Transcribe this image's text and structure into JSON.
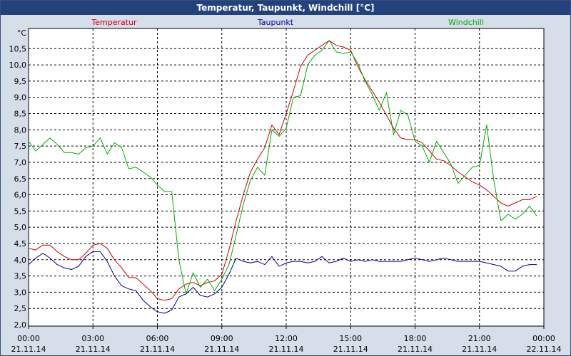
{
  "window": {
    "title": "Temperatur, Taupunkt, Windchill [°C]"
  },
  "chart_data": {
    "type": "line",
    "title": "Temperatur, Taupunkt, Windchill [°C]",
    "ylabel": "°C",
    "ylim": [
      2.0,
      11.0
    ],
    "yticks": [
      "2,0",
      "2,5",
      "3,0",
      "3,5",
      "4,0",
      "4,5",
      "5,0",
      "5,5",
      "6,0",
      "6,5",
      "7,0",
      "7,5",
      "8,0",
      "8,5",
      "9,0",
      "9,5",
      "10,0",
      "10,5"
    ],
    "x_ticks": [
      {
        "time": "00:00",
        "date": "21.11.14"
      },
      {
        "time": "03:00",
        "date": "21.11.14"
      },
      {
        "time": "06:00",
        "date": "21.11.14"
      },
      {
        "time": "09:00",
        "date": "21.11.14"
      },
      {
        "time": "12:00",
        "date": "21.11.14"
      },
      {
        "time": "15:00",
        "date": "21.11.14"
      },
      {
        "time": "18:00",
        "date": "21.11.14"
      },
      {
        "time": "21:00",
        "date": "21.11.14"
      },
      {
        "time": "00:00",
        "date": "22.11.14"
      }
    ],
    "xlim": [
      "21.11.14 00:00",
      "22.11.14 00:00"
    ],
    "grid": true,
    "legend": "top",
    "series": [
      {
        "name": "Temperatur",
        "color": "#cc0000",
        "points": [
          [
            "00:00",
            4.35
          ],
          [
            "00:20",
            4.3
          ],
          [
            "00:40",
            4.45
          ],
          [
            "01:00",
            4.45
          ],
          [
            "01:20",
            4.25
          ],
          [
            "01:40",
            4.1
          ],
          [
            "02:00",
            4.0
          ],
          [
            "02:20",
            4.0
          ],
          [
            "02:40",
            4.2
          ],
          [
            "03:00",
            4.45
          ],
          [
            "03:20",
            4.5
          ],
          [
            "03:40",
            4.35
          ],
          [
            "04:00",
            4.0
          ],
          [
            "04:20",
            3.75
          ],
          [
            "04:40",
            3.45
          ],
          [
            "05:00",
            3.45
          ],
          [
            "05:20",
            3.25
          ],
          [
            "05:40",
            3.05
          ],
          [
            "06:00",
            2.8
          ],
          [
            "06:20",
            2.75
          ],
          [
            "06:40",
            2.8
          ],
          [
            "07:00",
            3.1
          ],
          [
            "07:20",
            3.25
          ],
          [
            "07:40",
            3.3
          ],
          [
            "08:00",
            3.2
          ],
          [
            "08:20",
            3.3
          ],
          [
            "08:40",
            3.35
          ],
          [
            "09:00",
            3.55
          ],
          [
            "09:20",
            4.3
          ],
          [
            "09:40",
            5.2
          ],
          [
            "10:00",
            6.0
          ],
          [
            "10:20",
            6.7
          ],
          [
            "10:40",
            7.1
          ],
          [
            "11:00",
            7.45
          ],
          [
            "11:20",
            8.15
          ],
          [
            "11:40",
            7.85
          ],
          [
            "12:00",
            8.5
          ],
          [
            "12:20",
            9.2
          ],
          [
            "12:40",
            9.95
          ],
          [
            "13:00",
            10.3
          ],
          [
            "13:20",
            10.45
          ],
          [
            "13:40",
            10.6
          ],
          [
            "14:00",
            10.75
          ],
          [
            "14:20",
            10.6
          ],
          [
            "14:40",
            10.55
          ],
          [
            "15:00",
            10.45
          ],
          [
            "15:20",
            9.95
          ],
          [
            "15:40",
            9.55
          ],
          [
            "16:00",
            9.2
          ],
          [
            "16:20",
            8.85
          ],
          [
            "16:40",
            8.45
          ],
          [
            "17:00",
            8.05
          ],
          [
            "17:20",
            7.75
          ],
          [
            "17:40",
            7.7
          ],
          [
            "18:00",
            7.7
          ],
          [
            "18:20",
            7.6
          ],
          [
            "18:40",
            7.35
          ],
          [
            "19:00",
            7.1
          ],
          [
            "19:20",
            7.05
          ],
          [
            "19:40",
            6.9
          ],
          [
            "20:00",
            6.7
          ],
          [
            "20:20",
            6.55
          ],
          [
            "20:40",
            6.4
          ],
          [
            "21:00",
            6.3
          ],
          [
            "21:20",
            6.15
          ],
          [
            "21:40",
            5.95
          ],
          [
            "22:00",
            5.75
          ],
          [
            "22:20",
            5.65
          ],
          [
            "22:40",
            5.75
          ],
          [
            "23:00",
            5.85
          ],
          [
            "23:20",
            5.85
          ],
          [
            "23:40",
            5.95
          ]
        ]
      },
      {
        "name": "Taupunkt",
        "color": "#00008b",
        "points": [
          [
            "00:00",
            3.85
          ],
          [
            "00:20",
            4.05
          ],
          [
            "00:40",
            4.2
          ],
          [
            "01:00",
            4.05
          ],
          [
            "01:20",
            3.85
          ],
          [
            "01:40",
            3.75
          ],
          [
            "02:00",
            3.7
          ],
          [
            "02:20",
            3.8
          ],
          [
            "02:40",
            4.1
          ],
          [
            "03:00",
            4.25
          ],
          [
            "03:20",
            4.25
          ],
          [
            "03:40",
            3.95
          ],
          [
            "04:00",
            3.5
          ],
          [
            "04:20",
            3.2
          ],
          [
            "04:40",
            3.1
          ],
          [
            "05:00",
            3.05
          ],
          [
            "05:20",
            2.75
          ],
          [
            "05:40",
            2.55
          ],
          [
            "06:00",
            2.4
          ],
          [
            "06:20",
            2.35
          ],
          [
            "06:40",
            2.45
          ],
          [
            "07:00",
            2.85
          ],
          [
            "07:20",
            2.95
          ],
          [
            "07:40",
            3.15
          ],
          [
            "08:00",
            2.9
          ],
          [
            "08:20",
            2.85
          ],
          [
            "08:40",
            2.95
          ],
          [
            "09:00",
            3.15
          ],
          [
            "09:20",
            3.55
          ],
          [
            "09:40",
            4.05
          ],
          [
            "10:00",
            3.95
          ],
          [
            "10:20",
            3.9
          ],
          [
            "10:40",
            3.95
          ],
          [
            "11:00",
            3.85
          ],
          [
            "11:20",
            4.1
          ],
          [
            "11:40",
            3.8
          ],
          [
            "12:00",
            3.9
          ],
          [
            "12:20",
            3.95
          ],
          [
            "12:40",
            3.95
          ],
          [
            "13:00",
            3.9
          ],
          [
            "13:20",
            3.95
          ],
          [
            "13:40",
            4.1
          ],
          [
            "14:00",
            3.9
          ],
          [
            "14:20",
            3.95
          ],
          [
            "14:40",
            4.05
          ],
          [
            "15:00",
            3.95
          ],
          [
            "15:20",
            4.0
          ],
          [
            "15:40",
            3.95
          ],
          [
            "16:00",
            4.0
          ],
          [
            "16:20",
            3.95
          ],
          [
            "16:40",
            3.95
          ],
          [
            "17:00",
            3.95
          ],
          [
            "17:20",
            3.95
          ],
          [
            "17:40",
            4.0
          ],
          [
            "18:00",
            4.05
          ],
          [
            "18:20",
            4.0
          ],
          [
            "18:40",
            3.95
          ],
          [
            "19:00",
            4.0
          ],
          [
            "19:20",
            4.05
          ],
          [
            "19:40",
            4.0
          ],
          [
            "20:00",
            3.95
          ],
          [
            "20:20",
            3.95
          ],
          [
            "20:40",
            3.95
          ],
          [
            "21:00",
            3.95
          ],
          [
            "21:20",
            3.9
          ],
          [
            "21:40",
            3.85
          ],
          [
            "22:00",
            3.8
          ],
          [
            "22:20",
            3.65
          ],
          [
            "22:40",
            3.65
          ],
          [
            "23:00",
            3.8
          ],
          [
            "23:20",
            3.85
          ],
          [
            "23:40",
            3.85
          ]
        ]
      },
      {
        "name": "Windchill",
        "color": "#00aa00",
        "points": [
          [
            "00:00",
            7.65
          ],
          [
            "00:20",
            7.35
          ],
          [
            "00:40",
            7.55
          ],
          [
            "01:00",
            7.75
          ],
          [
            "01:20",
            7.55
          ],
          [
            "01:40",
            7.3
          ],
          [
            "02:00",
            7.3
          ],
          [
            "02:20",
            7.25
          ],
          [
            "02:40",
            7.45
          ],
          [
            "03:00",
            7.5
          ],
          [
            "03:20",
            7.75
          ],
          [
            "03:40",
            7.25
          ],
          [
            "04:00",
            7.6
          ],
          [
            "04:20",
            7.45
          ],
          [
            "04:40",
            6.8
          ],
          [
            "05:00",
            6.85
          ],
          [
            "05:20",
            6.7
          ],
          [
            "05:40",
            6.55
          ],
          [
            "06:00",
            6.3
          ],
          [
            "06:20",
            6.1
          ],
          [
            "06:40",
            6.1
          ],
          [
            "07:00",
            4.0
          ],
          [
            "07:20",
            2.95
          ],
          [
            "07:40",
            3.6
          ],
          [
            "08:00",
            3.15
          ],
          [
            "08:20",
            3.4
          ],
          [
            "08:40",
            3.05
          ],
          [
            "09:00",
            3.4
          ],
          [
            "09:20",
            3.85
          ],
          [
            "09:40",
            4.75
          ],
          [
            "10:00",
            5.7
          ],
          [
            "10:20",
            6.45
          ],
          [
            "10:40",
            6.85
          ],
          [
            "11:00",
            6.6
          ],
          [
            "11:20",
            8.0
          ],
          [
            "11:40",
            7.8
          ],
          [
            "12:00",
            8.05
          ],
          [
            "12:20",
            9.0
          ],
          [
            "12:40",
            9.05
          ],
          [
            "13:00",
            10.0
          ],
          [
            "13:20",
            10.3
          ],
          [
            "13:40",
            10.45
          ],
          [
            "14:00",
            10.75
          ],
          [
            "14:20",
            10.4
          ],
          [
            "14:40",
            10.35
          ],
          [
            "15:00",
            10.4
          ],
          [
            "15:20",
            10.05
          ],
          [
            "15:40",
            9.5
          ],
          [
            "16:00",
            9.1
          ],
          [
            "16:20",
            8.6
          ],
          [
            "16:40",
            9.15
          ],
          [
            "17:00",
            7.85
          ],
          [
            "17:20",
            8.6
          ],
          [
            "17:40",
            8.45
          ],
          [
            "18:00",
            7.65
          ],
          [
            "18:20",
            7.5
          ],
          [
            "18:40",
            7.0
          ],
          [
            "19:00",
            7.65
          ],
          [
            "19:20",
            7.3
          ],
          [
            "19:40",
            6.95
          ],
          [
            "20:00",
            6.35
          ],
          [
            "20:20",
            6.6
          ],
          [
            "20:40",
            6.85
          ],
          [
            "21:00",
            6.9
          ],
          [
            "21:20",
            8.15
          ],
          [
            "21:40",
            6.45
          ],
          [
            "22:00",
            5.2
          ],
          [
            "22:20",
            5.4
          ],
          [
            "22:40",
            5.25
          ],
          [
            "23:00",
            5.4
          ],
          [
            "23:20",
            5.65
          ],
          [
            "23:40",
            5.35
          ]
        ]
      }
    ]
  }
}
